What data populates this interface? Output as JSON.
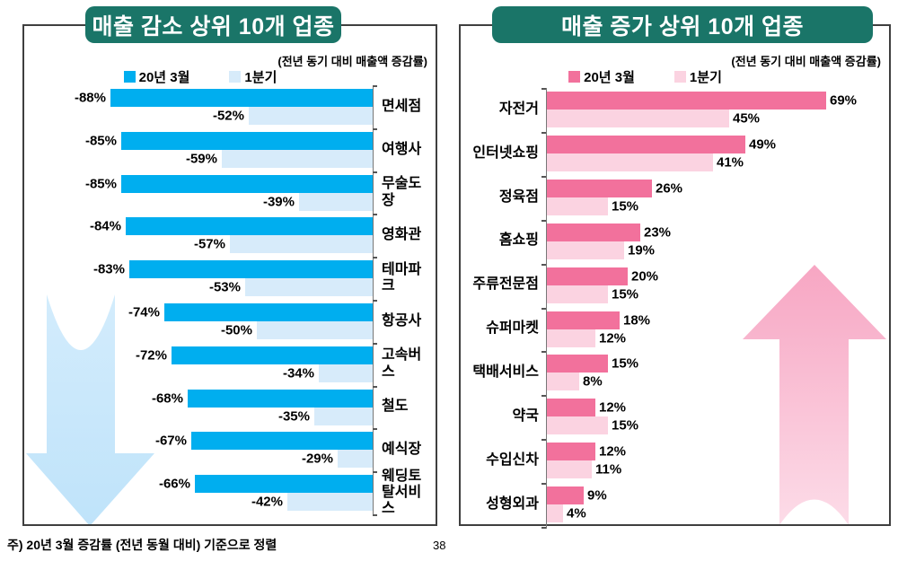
{
  "page": {
    "note": "주) 20년 3월 증감률 (전년 동월 대비) 기준으로 정렬",
    "page_number": "38"
  },
  "chart_data": [
    {
      "type": "bar",
      "title": "매출 감소 상위 10개 업종",
      "subtitle": "(전년 동기 대비 매출액 증감률)",
      "orientation": "horizontal",
      "bar_direction": "leftward_from_right_axis",
      "legend_position": "top",
      "grid": false,
      "title_bg": "#1A7568",
      "title_color": "#FFFFFF",
      "value_suffix": "%",
      "xlim": [
        -110,
        -20
      ],
      "categories": [
        "면세점",
        "여행사",
        "무술도장",
        "영화관",
        "테마파크",
        "항공사",
        "고속버스",
        "철도",
        "예식장",
        "웨딩토탈서비스"
      ],
      "series": [
        {
          "name": "20년 3월",
          "color": "#00AEEF",
          "values": [
            -88,
            -85,
            -85,
            -84,
            -83,
            -74,
            -72,
            -68,
            -67,
            -66
          ]
        },
        {
          "name": "1분기",
          "color": "#D7EBFA",
          "values": [
            -52,
            -59,
            -39,
            -57,
            -53,
            -50,
            -34,
            -35,
            -29,
            -42
          ]
        }
      ],
      "decoration": {
        "arrow_direction": "down",
        "arrow_colors": [
          "#D3ECFC",
          "#BFE3FA"
        ]
      }
    },
    {
      "type": "bar",
      "title": "매출 증가 상위 10개 업종",
      "subtitle": "(전년 동기 대비 매출액 증감률)",
      "orientation": "horizontal",
      "bar_direction": "rightward_from_left_axis",
      "legend_position": "top",
      "grid": false,
      "title_bg": "#1A7568",
      "title_color": "#FFFFFF",
      "value_suffix": "%",
      "xlim": [
        0,
        85
      ],
      "categories": [
        "자전거",
        "인터넷쇼핑",
        "정육점",
        "홈쇼핑",
        "주류전문점",
        "슈퍼마켓",
        "택배서비스",
        "약국",
        "수입신차",
        "성형외과"
      ],
      "series": [
        {
          "name": "20년 3월",
          "color": "#F2719C",
          "values": [
            69,
            49,
            26,
            23,
            20,
            18,
            15,
            12,
            12,
            9
          ]
        },
        {
          "name": "1분기",
          "color": "#FBD3E1",
          "values": [
            45,
            41,
            15,
            19,
            15,
            12,
            8,
            15,
            11,
            4
          ]
        }
      ],
      "decoration": {
        "arrow_direction": "up",
        "arrow_colors": [
          "#F7A6C3",
          "#FCDCE8"
        ]
      }
    }
  ]
}
